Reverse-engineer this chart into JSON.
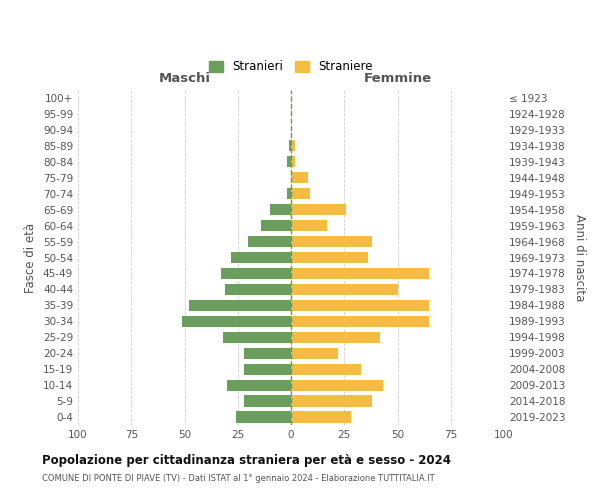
{
  "age_groups": [
    "100+",
    "95-99",
    "90-94",
    "85-89",
    "80-84",
    "75-79",
    "70-74",
    "65-69",
    "60-64",
    "55-59",
    "50-54",
    "45-49",
    "40-44",
    "35-39",
    "30-34",
    "25-29",
    "20-24",
    "15-19",
    "10-14",
    "5-9",
    "0-4"
  ],
  "birth_years": [
    "≤ 1923",
    "1924-1928",
    "1929-1933",
    "1934-1938",
    "1939-1943",
    "1944-1948",
    "1949-1953",
    "1954-1958",
    "1959-1963",
    "1964-1968",
    "1969-1973",
    "1974-1978",
    "1979-1983",
    "1984-1988",
    "1989-1993",
    "1994-1998",
    "1999-2003",
    "2004-2008",
    "2009-2013",
    "2014-2018",
    "2019-2023"
  ],
  "maschi": [
    0,
    0,
    0,
    1,
    2,
    0,
    2,
    10,
    14,
    20,
    28,
    33,
    31,
    48,
    51,
    32,
    22,
    22,
    30,
    22,
    26
  ],
  "femmine": [
    0,
    0,
    0,
    2,
    2,
    8,
    9,
    26,
    17,
    38,
    36,
    65,
    50,
    65,
    65,
    42,
    22,
    33,
    43,
    38,
    28
  ],
  "male_color": "#6a9e5b",
  "female_color": "#f5bc42",
  "background_color": "#ffffff",
  "grid_color": "#cccccc",
  "title": "Popolazione per cittadinanza straniera per età e sesso - 2024",
  "subtitle": "COMUNE DI PONTE DI PIAVE (TV) - Dati ISTAT al 1° gennaio 2024 - Elaborazione TUTTITALIA.IT",
  "ylabel_left": "Fasce di età",
  "ylabel_right": "Anni di nascita",
  "xlabel_left": "Maschi",
  "xlabel_top_right": "Femmine",
  "legend_stranieri": "Stranieri",
  "legend_straniere": "Straniere",
  "xlim": 100
}
